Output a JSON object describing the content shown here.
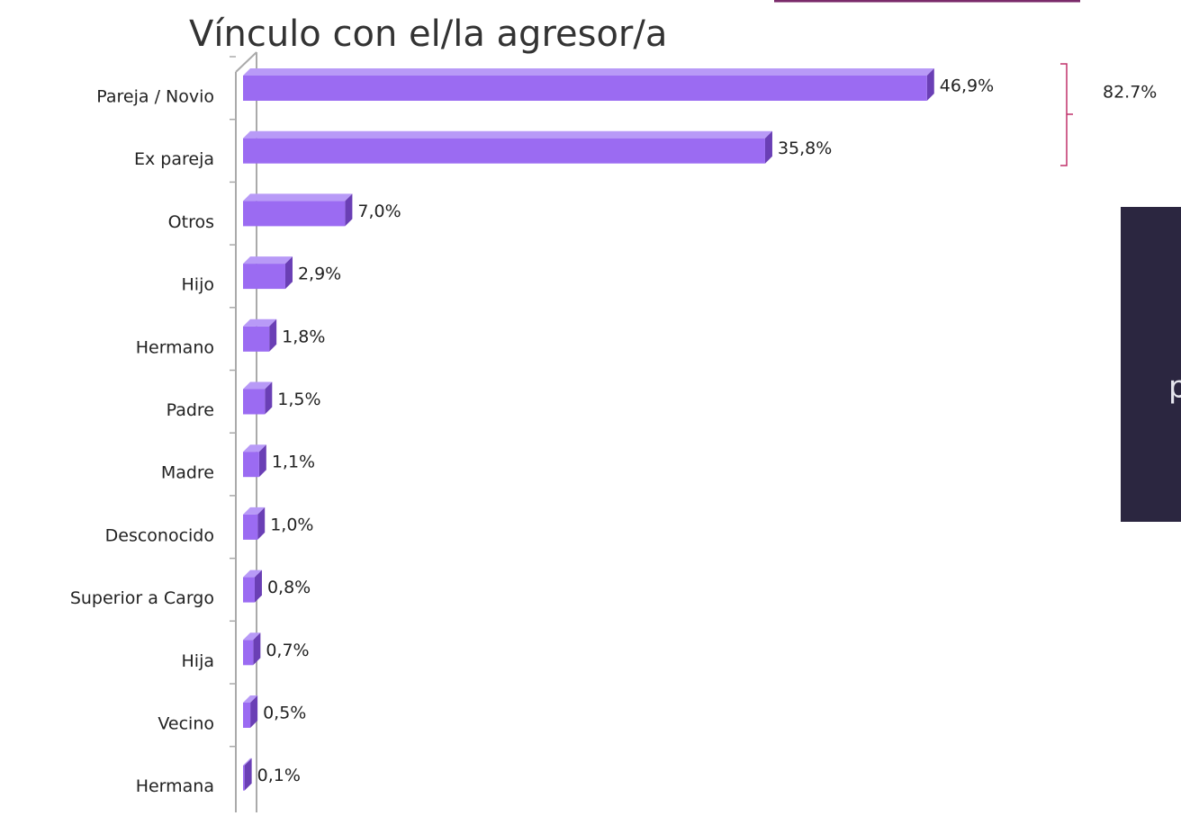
{
  "chart_data": {
    "type": "bar",
    "orientation": "horizontal",
    "title": "Vínculo con el/la agresor/a",
    "categories": [
      "Pareja / Novio",
      "Ex pareja",
      "Otros",
      "Hijo",
      "Hermano",
      "Padre",
      "Madre",
      "Desconocido",
      "Superior a Cargo",
      "Hija",
      "Vecino",
      "Hermana"
    ],
    "values": [
      46.9,
      35.8,
      7.0,
      2.9,
      1.8,
      1.5,
      1.1,
      1.0,
      0.8,
      0.7,
      0.5,
      0.1
    ],
    "value_labels": [
      "46,9%",
      "35,8%",
      "7,0%",
      "2,9%",
      "1,8%",
      "1,5%",
      "1,1%",
      "1,0%",
      "0,8%",
      "0,7%",
      "0,5%",
      "0,1%"
    ],
    "color": "#9b6bf2",
    "annotation": "82.7%"
  },
  "panel": {
    "text": "p"
  }
}
